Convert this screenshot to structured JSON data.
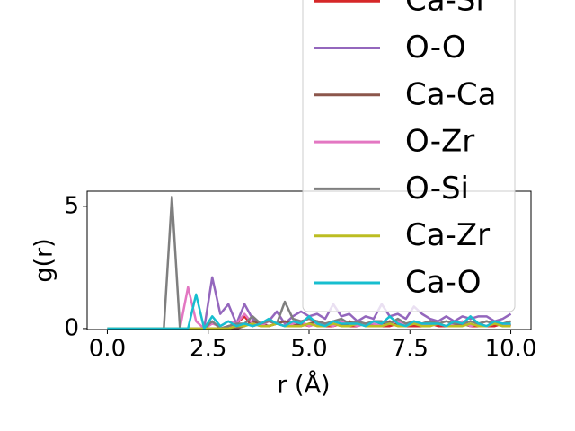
{
  "chart_data": {
    "type": "line",
    "xlabel": "r (Å)",
    "ylabel": "g(r)",
    "xlim": [
      -0.5,
      10.5
    ],
    "ylim": [
      -0.04,
      5.63
    ],
    "xticks": [
      {
        "value": 0,
        "label": "0.0"
      },
      2.5,
      {
        "value": 5,
        "label": "5.0"
      },
      7.5,
      {
        "value": 10,
        "label": "10.0"
      }
    ],
    "yticks": [
      0,
      5
    ],
    "legend": "upper right",
    "x": [
      0,
      0.2,
      0.4,
      0.6,
      0.8,
      1,
      1.2,
      1.4,
      1.6,
      1.8,
      2,
      2.2,
      2.4,
      2.6,
      2.8,
      3,
      3.2,
      3.4,
      3.6,
      3.8,
      4,
      4.2,
      4.4,
      4.6,
      4.8,
      5,
      5.2,
      5.4,
      5.6,
      5.8,
      6,
      6.2,
      6.4,
      6.6,
      6.8,
      7,
      7.2,
      7.4,
      7.6,
      7.8,
      8,
      8.2,
      8.4,
      8.6,
      8.8,
      9,
      9.2,
      9.4,
      9.6,
      9.8,
      10
    ],
    "series": [
      {
        "name": "Ca-Si",
        "color": "#d62728",
        "values": [
          0,
          0,
          0,
          0,
          0,
          0,
          0,
          0,
          0,
          0,
          0,
          0,
          0,
          0,
          0,
          0.1,
          0.2,
          0.5,
          0.1,
          0.2,
          0.1,
          0.2,
          0.1,
          0.1,
          0.2,
          0.1,
          0.2,
          0.1,
          0.1,
          0.2,
          0.1,
          0.1,
          0.2,
          0.1,
          0.1,
          0.1,
          0.2,
          0.1,
          0.1,
          0.1,
          0.2,
          0.1,
          0.1,
          0.1,
          0.2,
          0.1,
          0.1,
          0.1,
          0.1,
          0.2,
          0.1
        ]
      },
      {
        "name": "O-O",
        "color": "#9467bd",
        "values": [
          0,
          0,
          0,
          0,
          0,
          0,
          0,
          0,
          0,
          0,
          0,
          0,
          0,
          2.1,
          0.6,
          1.0,
          0.2,
          1.0,
          0.4,
          0.2,
          0.3,
          0.7,
          0.2,
          0.5,
          0.7,
          0.5,
          0.6,
          0.4,
          1.0,
          0.5,
          0.6,
          0.3,
          0.5,
          0.4,
          1.0,
          0.5,
          0.6,
          0.4,
          0.9,
          0.6,
          0.4,
          0.3,
          0.5,
          0.3,
          0.5,
          0.4,
          0.5,
          0.5,
          0.3,
          0.4,
          0.6
        ]
      },
      {
        "name": "Ca-Ca",
        "color": "#8c564b",
        "values": [
          0,
          0,
          0,
          0,
          0,
          0,
          0,
          0,
          0,
          0,
          0,
          0,
          0,
          0,
          0,
          0,
          0,
          0.1,
          0.3,
          0.2,
          0.1,
          0.2,
          0.3,
          0.2,
          0.1,
          0.2,
          0.3,
          0.2,
          0.2,
          0.1,
          0.3,
          0.2,
          0.2,
          0.1,
          0.2,
          0.3,
          0.2,
          0.1,
          0.2,
          0.2,
          0.3,
          0.2,
          0.1,
          0.2,
          0.2,
          0.1,
          0.2,
          0.3,
          0.2,
          0.1,
          0.2
        ]
      },
      {
        "name": "O-Zr",
        "color": "#e377c2",
        "values": [
          0,
          0,
          0,
          0,
          0,
          0,
          0,
          0,
          0,
          0,
          1.7,
          0.3,
          0,
          0.2,
          0.1,
          0.3,
          0.2,
          0.6,
          0.2,
          0.1,
          0.3,
          0.2,
          0.1,
          0.2,
          0.3,
          0.1,
          0.2,
          0.2,
          0.1,
          0.3,
          0.2,
          0.1,
          0.2,
          0.2,
          0.1,
          0.2,
          0.3,
          0.1,
          0.2,
          0.2,
          0.1,
          0.2,
          0.1,
          0.2,
          0.3,
          0.1,
          0.2,
          0.1,
          0.2,
          0.2,
          0.1
        ]
      },
      {
        "name": "O-Si",
        "color": "#7f7f7f",
        "values": [
          0,
          0,
          0,
          0,
          0,
          0,
          0,
          0,
          5.4,
          0,
          0,
          0,
          0,
          0.3,
          0,
          0.1,
          0.2,
          0.2,
          0.5,
          0.2,
          0.3,
          0.2,
          1.1,
          0.4,
          0.3,
          0.4,
          0.3,
          0.2,
          0.3,
          0.4,
          0.2,
          0.3,
          0.2,
          0.3,
          0.3,
          0.2,
          0.4,
          0.2,
          0.3,
          0.2,
          0.3,
          0.2,
          0.3,
          0.2,
          0.2,
          0.3,
          0.2,
          0.3,
          0.2,
          0.2,
          0.3
        ]
      },
      {
        "name": "Ca-Zr",
        "color": "#bcbd22",
        "values": [
          0,
          0,
          0,
          0,
          0,
          0,
          0,
          0,
          0,
          0,
          0,
          0,
          0,
          0,
          0,
          0,
          0.1,
          0.1,
          0.2,
          0.1,
          0.1,
          0.2,
          0.1,
          0.1,
          0.1,
          0.2,
          0.1,
          0.1,
          0.2,
          0.1,
          0.1,
          0.2,
          0.1,
          0.1,
          0.1,
          0.2,
          0.1,
          0.1,
          0.2,
          0.1,
          0.1,
          0.2,
          0.1,
          0.1,
          0.1,
          0.2,
          0.1,
          0.1,
          0.2,
          0.1,
          0.1
        ]
      },
      {
        "name": "Ca-O",
        "color": "#17becf",
        "values": [
          0,
          0,
          0,
          0,
          0,
          0,
          0,
          0,
          0,
          0,
          0,
          1.4,
          0,
          0.5,
          0.1,
          0.3,
          0.1,
          0.2,
          0.1,
          0.2,
          0.4,
          0.2,
          0.1,
          0.3,
          0.2,
          0.5,
          0.2,
          0.1,
          0.3,
          0.2,
          0.2,
          0.2,
          0.1,
          0.3,
          0.2,
          0.5,
          0.2,
          0.1,
          0.3,
          0.2,
          0.2,
          0.2,
          0.1,
          0.3,
          0.2,
          0.5,
          0.2,
          0.1,
          0.3,
          0.2,
          0.2
        ]
      }
    ]
  }
}
